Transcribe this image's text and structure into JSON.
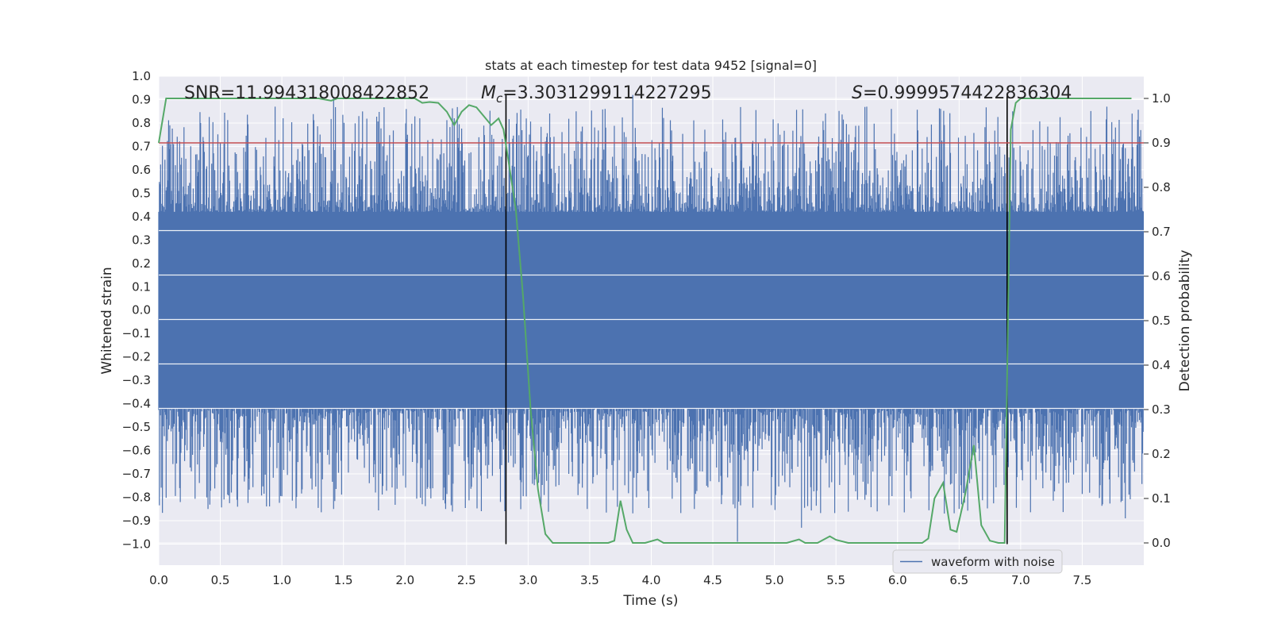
{
  "chart_data": {
    "type": "line",
    "title": "stats at each timestep for test data 9452 [signal=0]",
    "xlabel": "Time (s)",
    "ylabel": "Whitened strain",
    "y2label": "Detection probability",
    "xlim": [
      0.0,
      8.0
    ],
    "ylim": [
      -1.09,
      1.0
    ],
    "y2lim": [
      -0.05,
      1.05
    ],
    "xticks": [
      0.0,
      0.5,
      1.0,
      1.5,
      2.0,
      2.5,
      3.0,
      3.5,
      4.0,
      4.5,
      5.0,
      5.5,
      6.0,
      6.5,
      7.0,
      7.5
    ],
    "xtick_labels": [
      "0.0",
      "0.5",
      "1.0",
      "1.5",
      "2.0",
      "2.5",
      "3.0",
      "3.5",
      "4.0",
      "4.5",
      "5.0",
      "5.5",
      "6.0",
      "6.5",
      "7.0",
      "7.5"
    ],
    "yticks": [
      1.0,
      0.9,
      0.8,
      0.7,
      0.6,
      0.5,
      0.4,
      0.3,
      0.2,
      0.1,
      0.0,
      -0.1,
      -0.2,
      -0.3,
      -0.4,
      -0.5,
      -0.6,
      -0.7,
      -0.8,
      -0.9,
      -1.0
    ],
    "ytick_labels": [
      "1.0",
      "0.9",
      "0.8",
      "0.7",
      "0.6",
      "0.5",
      "0.4",
      "0.3",
      "0.2",
      "0.1",
      "0.0",
      "−0.1",
      "−0.2",
      "−0.3",
      "−0.4",
      "−0.5",
      "−0.6",
      "−0.7",
      "−0.8",
      "−0.9",
      "−1.0"
    ],
    "y2ticks": [
      1.0,
      0.9,
      0.8,
      0.7,
      0.6,
      0.5,
      0.4,
      0.3,
      0.2,
      0.1,
      0.0
    ],
    "y2tick_labels": [
      "1.0",
      "0.9",
      "0.8",
      "0.7",
      "0.6",
      "0.5",
      "0.4",
      "0.3",
      "0.2",
      "0.1",
      "0.0"
    ],
    "grid": true,
    "annotations": {
      "snr": "SNR=11.994318008422852",
      "mc_symbol": "M",
      "mc_sub": "c",
      "mc_value": "=3.3031299114227295",
      "s_symbol": "S",
      "s_value": "=0.9999574422836304"
    },
    "threshold_line": {
      "axis": "y2",
      "value": 0.9,
      "color": "#c44e52"
    },
    "vertical_markers": [
      {
        "x": 2.82,
        "y_range": [
          -1.0,
          0.92
        ]
      },
      {
        "x": 6.89,
        "y_range": [
          -1.0,
          0.92
        ]
      }
    ],
    "series": [
      {
        "name": "waveform with noise",
        "axis": "y",
        "color": "#4c72b0",
        "style": "dense noise",
        "core_band": [
          -0.42,
          0.42
        ],
        "x_range": [
          0.0,
          8.0
        ],
        "sample_peaks": [
          {
            "x": 1.42,
            "y": 0.91
          },
          {
            "x": 3.85,
            "y": 0.92
          },
          {
            "x": 5.95,
            "y": 0.86
          },
          {
            "x": 6.35,
            "y": 0.86
          },
          {
            "x": 7.7,
            "y": 0.87
          },
          {
            "x": 1.01,
            "y": 0.82
          },
          {
            "x": 2.12,
            "y": 0.82
          },
          {
            "x": 2.4,
            "y": 0.82
          },
          {
            "x": 4.7,
            "y": -0.99
          },
          {
            "x": 3.48,
            "y": -0.85
          },
          {
            "x": 0.4,
            "y": -0.85
          },
          {
            "x": 5.22,
            "y": -0.93
          },
          {
            "x": 7.85,
            "y": -0.89
          },
          {
            "x": 4.35,
            "y": -0.85
          },
          {
            "x": 1.42,
            "y": -0.85
          }
        ]
      },
      {
        "name": "detection probability",
        "axis": "y2",
        "color": "#55a868",
        "x": [
          0.0,
          0.06,
          0.15,
          0.25,
          0.4,
          0.6,
          0.8,
          1.0,
          1.2,
          1.3,
          1.4,
          1.45,
          1.6,
          1.8,
          2.0,
          2.08,
          2.14,
          2.2,
          2.27,
          2.34,
          2.4,
          2.46,
          2.52,
          2.58,
          2.64,
          2.7,
          2.76,
          2.8,
          2.84,
          2.9,
          2.96,
          3.02,
          3.08,
          3.14,
          3.2,
          3.3,
          3.45,
          3.55,
          3.65,
          3.7,
          3.75,
          3.8,
          3.85,
          3.95,
          4.05,
          4.1,
          4.2,
          4.3,
          4.4,
          4.5,
          4.6,
          4.7,
          4.8,
          4.9,
          5.0,
          5.1,
          5.2,
          5.25,
          5.35,
          5.45,
          5.5,
          5.6,
          5.7,
          5.8,
          5.9,
          6.0,
          6.1,
          6.2,
          6.25,
          6.3,
          6.37,
          6.43,
          6.48,
          6.55,
          6.62,
          6.68,
          6.75,
          6.82,
          6.87,
          6.92,
          6.96,
          7.0,
          7.1,
          7.3,
          7.5,
          7.7,
          7.9
        ],
        "y": [
          0.9,
          1.0,
          1.0,
          1.0,
          1.0,
          1.0,
          1.0,
          1.0,
          1.0,
          1.0,
          0.995,
          1.0,
          1.0,
          1.0,
          1.0,
          1.0,
          0.99,
          0.992,
          0.99,
          0.97,
          0.94,
          0.97,
          0.985,
          0.98,
          0.96,
          0.94,
          0.955,
          0.93,
          0.86,
          0.75,
          0.55,
          0.3,
          0.12,
          0.02,
          0.0,
          0.0,
          0.0,
          0.0,
          0.0,
          0.005,
          0.095,
          0.03,
          0.0,
          0.0,
          0.008,
          0.0,
          0.0,
          0.0,
          0.0,
          0.0,
          0.0,
          0.0,
          0.0,
          0.0,
          0.0,
          0.0,
          0.008,
          0.0,
          0.0,
          0.015,
          0.007,
          0.0,
          0.0,
          0.0,
          0.0,
          0.0,
          0.0,
          0.0,
          0.01,
          0.1,
          0.135,
          0.03,
          0.025,
          0.11,
          0.22,
          0.04,
          0.005,
          0.0,
          0.0,
          0.93,
          0.99,
          1.0,
          1.0,
          1.0,
          1.0,
          1.0,
          1.0
        ]
      }
    ],
    "legend": {
      "placement": "bottom-right",
      "entries": [
        "waveform with noise"
      ]
    }
  }
}
